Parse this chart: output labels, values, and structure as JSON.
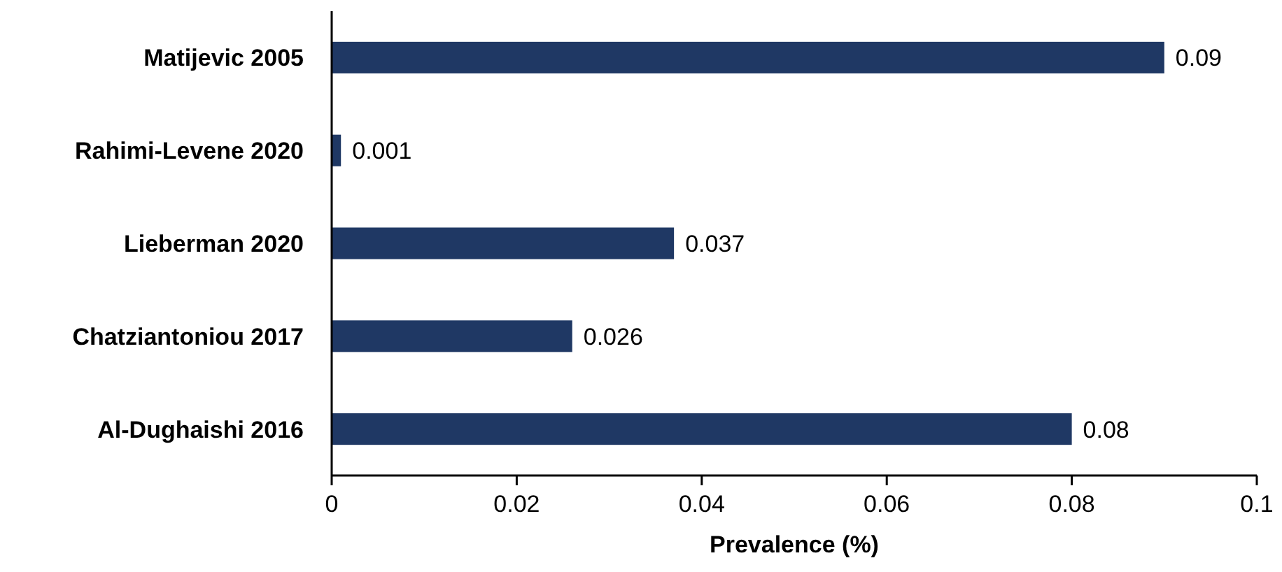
{
  "chart_data": {
    "type": "bar",
    "orientation": "horizontal",
    "categories": [
      "Matijevic 2005",
      "Rahimi-Levene 2020",
      "Lieberman 2020",
      "Chatziantoniou 2017",
      "Al-Dughaishi 2016"
    ],
    "values": [
      0.09,
      0.001,
      0.037,
      0.026,
      0.08
    ],
    "color": "#1f3864",
    "data_labels": true,
    "xlabel": "Prevalence (%)",
    "xlim": [
      0,
      0.1
    ],
    "xticks": [
      0,
      0.02,
      0.04,
      0.06,
      0.08,
      0.1
    ]
  }
}
